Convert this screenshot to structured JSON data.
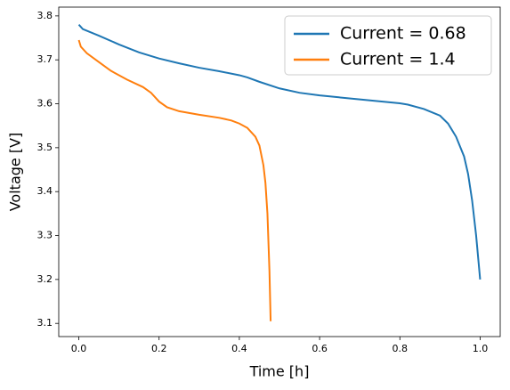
{
  "chart_data": {
    "type": "line",
    "xlabel": "Time [h]",
    "ylabel": "Voltage [V]",
    "xlim": [
      -0.05,
      1.05
    ],
    "ylim": [
      3.07,
      3.82
    ],
    "xticks": [
      {
        "value": 0,
        "label": "0.0"
      },
      0.2,
      0.4,
      0.6,
      0.8,
      {
        "value": 1,
        "label": "1.0"
      }
    ],
    "yticks": [
      3.1,
      3.2,
      3.3,
      3.4,
      3.5,
      3.6,
      3.7,
      3.8
    ],
    "legend": "upper right",
    "series": [
      {
        "name": "Current = 0.68",
        "color": "#1f77b4",
        "x": [
          0,
          0.01,
          0.05,
          0.1,
          0.15,
          0.2,
          0.25,
          0.3,
          0.35,
          0.4,
          0.42,
          0.45,
          0.5,
          0.55,
          0.6,
          0.7,
          0.8,
          0.82,
          0.86,
          0.9,
          0.92,
          0.94,
          0.96,
          0.97,
          0.98,
          0.99,
          1.0
        ],
        "values": [
          3.78,
          3.77,
          3.755,
          3.735,
          3.717,
          3.703,
          3.692,
          3.682,
          3.674,
          3.665,
          3.66,
          3.65,
          3.635,
          3.625,
          3.619,
          3.61,
          3.601,
          3.598,
          3.588,
          3.573,
          3.555,
          3.525,
          3.48,
          3.44,
          3.38,
          3.3,
          3.2
        ]
      },
      {
        "name": "Current = 1.4",
        "color": "#ff7f0e",
        "x": [
          0,
          0.005,
          0.02,
          0.05,
          0.08,
          0.12,
          0.16,
          0.18,
          0.2,
          0.22,
          0.25,
          0.3,
          0.35,
          0.38,
          0.4,
          0.42,
          0.44,
          0.45,
          0.46,
          0.465,
          0.47,
          0.475,
          0.478
        ],
        "values": [
          3.745,
          3.73,
          3.715,
          3.695,
          3.675,
          3.655,
          3.638,
          3.625,
          3.605,
          3.592,
          3.583,
          3.575,
          3.568,
          3.562,
          3.555,
          3.545,
          3.525,
          3.505,
          3.46,
          3.42,
          3.35,
          3.22,
          3.105
        ]
      }
    ]
  }
}
